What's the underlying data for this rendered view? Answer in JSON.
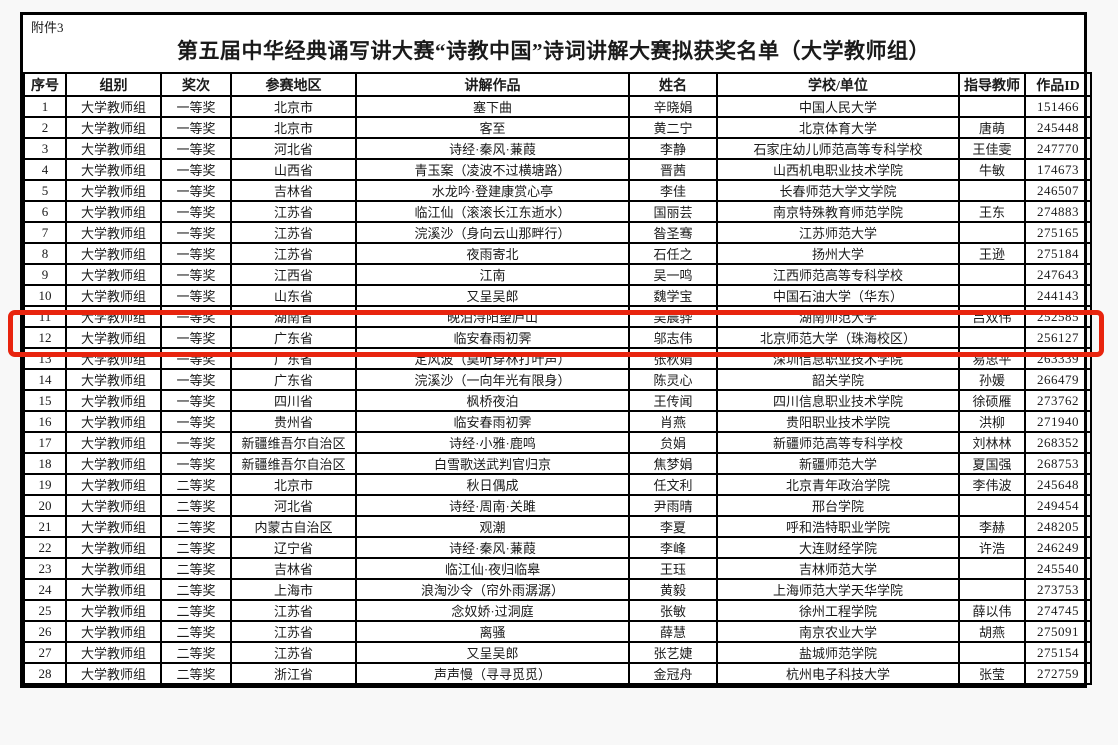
{
  "page": {
    "attachment_label": "附件3",
    "title": "第五届中华经典诵写讲大赛“诗教中国”诗词讲解大赛拟获奖名单（大学教师组）"
  },
  "table": {
    "columns": [
      "序号",
      "组别",
      "奖次",
      "参赛地区",
      "讲解作品",
      "姓名",
      "学校/单位",
      "指导教师",
      "作品ID"
    ],
    "rows": [
      [
        "1",
        "大学教师组",
        "一等奖",
        "北京市",
        "塞下曲",
        "辛晓娟",
        "中国人民大学",
        "",
        "151466"
      ],
      [
        "2",
        "大学教师组",
        "一等奖",
        "北京市",
        "客至",
        "黄二宁",
        "北京体育大学",
        "唐萌",
        "245448"
      ],
      [
        "3",
        "大学教师组",
        "一等奖",
        "河北省",
        "诗经·秦风·蒹葭",
        "李静",
        "石家庄幼儿师范高等专科学校",
        "王佳雯",
        "247770"
      ],
      [
        "4",
        "大学教师组",
        "一等奖",
        "山西省",
        "青玉案（凌波不过横塘路）",
        "晋茜",
        "山西机电职业技术学院",
        "牛敏",
        "174673"
      ],
      [
        "5",
        "大学教师组",
        "一等奖",
        "吉林省",
        "水龙吟·登建康赏心亭",
        "李佳",
        "长春师范大学文学院",
        "",
        "246507"
      ],
      [
        "6",
        "大学教师组",
        "一等奖",
        "江苏省",
        "临江仙（滚滚长江东逝水）",
        "国丽芸",
        "南京特殊教育师范学院",
        "王东",
        "274883"
      ],
      [
        "7",
        "大学教师组",
        "一等奖",
        "江苏省",
        "浣溪沙（身向云山那畔行）",
        "昝圣骞",
        "江苏师范大学",
        "",
        "275165"
      ],
      [
        "8",
        "大学教师组",
        "一等奖",
        "江苏省",
        "夜雨寄北",
        "石任之",
        "扬州大学",
        "王逊",
        "275184"
      ],
      [
        "9",
        "大学教师组",
        "一等奖",
        "江西省",
        "江南",
        "吴一鸣",
        "江西师范高等专科学校",
        "",
        "247643"
      ],
      [
        "10",
        "大学教师组",
        "一等奖",
        "山东省",
        "又呈吴郎",
        "魏学宝",
        "中国石油大学（华东）",
        "",
        "244143"
      ],
      [
        "11",
        "大学教师组",
        "一等奖",
        "湖南省",
        "晚泊浔阳望庐山",
        "吴晨骅",
        "湖南师范大学",
        "吕双伟",
        "252585"
      ],
      [
        "12",
        "大学教师组",
        "一等奖",
        "广东省",
        "临安春雨初霁",
        "邬志伟",
        "北京师范大学（珠海校区）",
        "",
        "256127"
      ],
      [
        "13",
        "大学教师组",
        "一等奖",
        "广东省",
        "定风波（莫听穿林打叶声）",
        "张秋娟",
        "深圳信息职业技术学院",
        "易思平",
        "263339"
      ],
      [
        "14",
        "大学教师组",
        "一等奖",
        "广东省",
        "浣溪沙（一向年光有限身）",
        "陈灵心",
        "韶关学院",
        "孙媛",
        "266479"
      ],
      [
        "15",
        "大学教师组",
        "一等奖",
        "四川省",
        "枫桥夜泊",
        "王传闻",
        "四川信息职业技术学院",
        "徐硕雁",
        "273762"
      ],
      [
        "16",
        "大学教师组",
        "一等奖",
        "贵州省",
        "临安春雨初霁",
        "肖燕",
        "贵阳职业技术学院",
        "洪柳",
        "271940"
      ],
      [
        "17",
        "大学教师组",
        "一等奖",
        "新疆维吾尔自治区",
        "诗经·小雅·鹿鸣",
        "贠娟",
        "新疆师范高等专科学校",
        "刘林林",
        "268352"
      ],
      [
        "18",
        "大学教师组",
        "一等奖",
        "新疆维吾尔自治区",
        "白雪歌送武判官归京",
        "焦梦娟",
        "新疆师范大学",
        "夏国强",
        "268753"
      ],
      [
        "19",
        "大学教师组",
        "二等奖",
        "北京市",
        "秋日偶成",
        "任文利",
        "北京青年政治学院",
        "李伟波",
        "245648"
      ],
      [
        "20",
        "大学教师组",
        "二等奖",
        "河北省",
        "诗经·周南·关雎",
        "尹雨晴",
        "邢台学院",
        "",
        "249454"
      ],
      [
        "21",
        "大学教师组",
        "二等奖",
        "内蒙古自治区",
        "观潮",
        "李夏",
        "呼和浩特职业学院",
        "李赫",
        "248205"
      ],
      [
        "22",
        "大学教师组",
        "二等奖",
        "辽宁省",
        "诗经·秦风·蒹葭",
        "李峰",
        "大连财经学院",
        "许浩",
        "246249"
      ],
      [
        "23",
        "大学教师组",
        "二等奖",
        "吉林省",
        "临江仙·夜归临皋",
        "王珏",
        "吉林师范大学",
        "",
        "245540"
      ],
      [
        "24",
        "大学教师组",
        "二等奖",
        "上海市",
        "浪淘沙令（帘外雨潺潺）",
        "黄毅",
        "上海师范大学天华学院",
        "",
        "273753"
      ],
      [
        "25",
        "大学教师组",
        "二等奖",
        "江苏省",
        "念奴娇·过洞庭",
        "张敏",
        "徐州工程学院",
        "薛以伟",
        "274745"
      ],
      [
        "26",
        "大学教师组",
        "二等奖",
        "江苏省",
        "离骚",
        "薛慧",
        "南京农业大学",
        "胡燕",
        "275091"
      ],
      [
        "27",
        "大学教师组",
        "二等奖",
        "江苏省",
        "又呈吴郎",
        "张艺婕",
        "盐城师范学院",
        "",
        "275154"
      ],
      [
        "28",
        "大学教师组",
        "二等奖",
        "浙江省",
        "声声慢（寻寻觅觅）",
        "金冠舟",
        "杭州电子科技大学",
        "张莹",
        "272759"
      ]
    ],
    "highlighted_row_number": "11"
  },
  "colors": {
    "highlight_border": "#e8240e",
    "text": "#1a1a1a",
    "table_border": "#000000"
  }
}
